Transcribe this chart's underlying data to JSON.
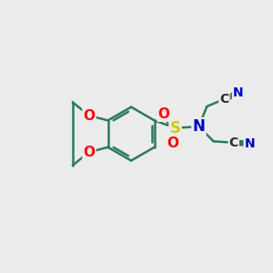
{
  "background_color": "#ebebeb",
  "bond_color": "#2d7a5a",
  "bond_width": 1.8,
  "atom_colors": {
    "O": "#ff0000",
    "N": "#0000cc",
    "S": "#cccc00",
    "C": "#2a2a2a",
    "N_label": "#0000cc"
  },
  "figsize": [
    3.0,
    3.0
  ],
  "dpi": 100
}
